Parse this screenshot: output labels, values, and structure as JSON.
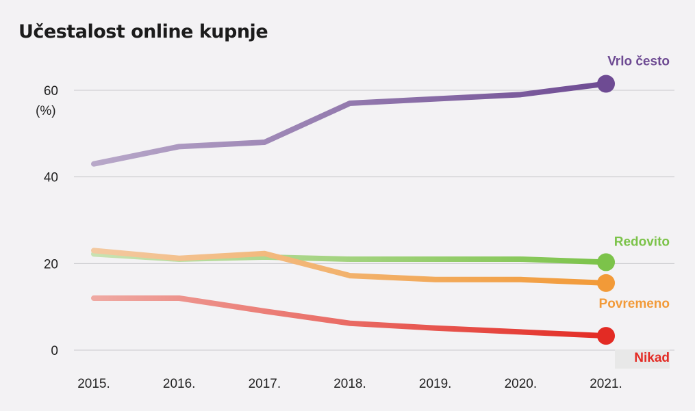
{
  "chart_data": {
    "type": "line",
    "title": "Učestalost online kupnje",
    "unit_label": "(%)",
    "categories": [
      "2015.",
      "2016.",
      "2017.",
      "2018.",
      "2019.",
      "2020.",
      "2021."
    ],
    "ylim": [
      0,
      60
    ],
    "yticks": [
      0,
      20,
      40,
      60
    ],
    "grid": true,
    "series": [
      {
        "name": "Vrlo često",
        "color": "#6e4b93",
        "start_color": "#b8a8c9",
        "values": [
          43,
          47,
          48,
          57,
          58,
          59,
          61.5
        ]
      },
      {
        "name": "Redovito",
        "color": "#7cc34a",
        "start_color": "#c8e2b2",
        "values": [
          22.2,
          21,
          21.5,
          21,
          21,
          21,
          20.3
        ]
      },
      {
        "name": "Povremeno",
        "color": "#f29a38",
        "start_color": "#f3c9a0",
        "values": [
          23,
          21.2,
          22.3,
          17.2,
          16.3,
          16.3,
          15.5
        ]
      },
      {
        "name": "Nikad",
        "color": "#e32b24",
        "start_color": "#efa9a2",
        "values": [
          12,
          12,
          9,
          6.2,
          5.1,
          4.2,
          3.3
        ]
      }
    ]
  }
}
